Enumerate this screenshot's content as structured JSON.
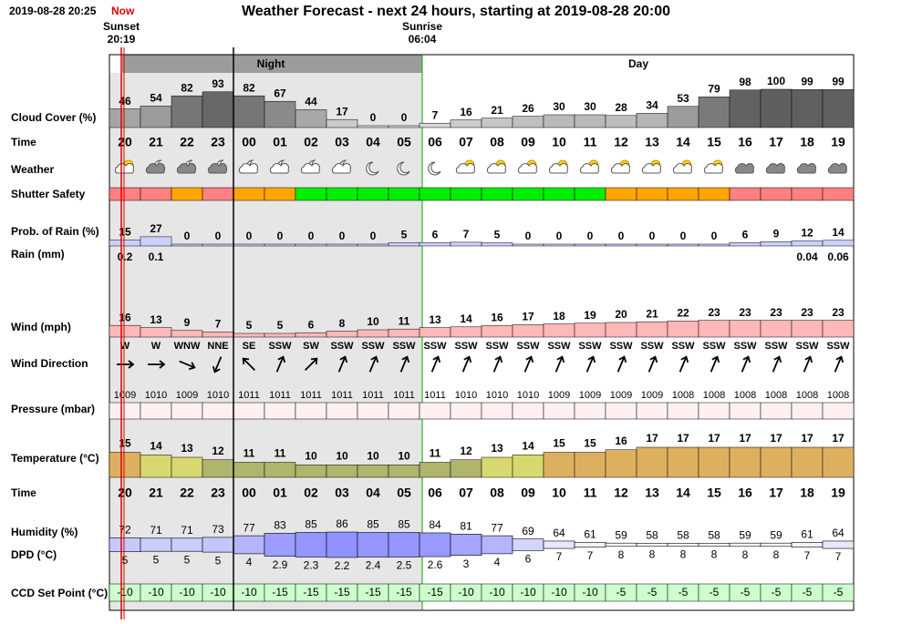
{
  "header": {
    "timestamp": "2019-08-28 20:25",
    "now": "Now",
    "title": "Weather Forecast - next 24 hours, starting at 2019-08-28 20:00",
    "sunset_label": "Sunset",
    "sunset_time": "20:19",
    "sunrise_label": "Sunrise",
    "sunrise_time": "06:04",
    "night": "Night",
    "day": "Day"
  },
  "row_labels": [
    "Cloud Cover (%)",
    "Time",
    "Weather",
    "Shutter Safety",
    "Prob. of Rain (%)",
    "Rain (mm)",
    "Wind (mph)",
    "Wind Direction",
    "Pressure (mbar)",
    "Temperature (°C)",
    "Time",
    "Humidity (%)",
    "DPD (°C)",
    "CCD Set Point (°C)"
  ],
  "hours": [
    "20",
    "21",
    "22",
    "23",
    "00",
    "01",
    "02",
    "03",
    "04",
    "05",
    "06",
    "07",
    "08",
    "09",
    "10",
    "11",
    "12",
    "13",
    "14",
    "15",
    "16",
    "17",
    "18",
    "19"
  ],
  "cloud_cover": [
    46,
    54,
    82,
    93,
    82,
    67,
    44,
    17,
    0,
    0,
    7,
    16,
    21,
    26,
    30,
    30,
    28,
    34,
    53,
    79,
    98,
    100,
    99,
    99
  ],
  "shutter_safety_colors": [
    "#ff8080",
    "#ff8080",
    "#ffa500",
    "#ff8080",
    "#ffa500",
    "#ffa500",
    "#00ee00",
    "#00ee00",
    "#00ee00",
    "#00ee00",
    "#00ee00",
    "#00ee00",
    "#00ee00",
    "#00ee00",
    "#00ee00",
    "#00ee00",
    "#ffa500",
    "#ffa500",
    "#ffa500",
    "#ffa500",
    "#ff8080",
    "#ff8080",
    "#ff8080",
    "#ff8080"
  ],
  "prob_of_rain": [
    15,
    27,
    0,
    0,
    0,
    0,
    0,
    0,
    0,
    5,
    6,
    7,
    5,
    0,
    0,
    0,
    0,
    0,
    0,
    0,
    6,
    9,
    12,
    14
  ],
  "rain_mm": [
    0.2,
    0.1,
    null,
    null,
    null,
    null,
    null,
    null,
    null,
    null,
    null,
    null,
    null,
    null,
    null,
    null,
    null,
    null,
    null,
    null,
    null,
    null,
    0.04,
    0.06
  ],
  "wind_mph": [
    16,
    13,
    9,
    7,
    5,
    5,
    6,
    8,
    10,
    11,
    13,
    14,
    16,
    17,
    18,
    19,
    20,
    21,
    22,
    23,
    23,
    23,
    23,
    23
  ],
  "wind_direction": [
    "W",
    "W",
    "WNW",
    "NNE",
    "SE",
    "SSW",
    "SW",
    "SSW",
    "SSW",
    "SSW",
    "SSW",
    "SSW",
    "SSW",
    "SSW",
    "SSW",
    "SSW",
    "SSW",
    "SSW",
    "SSW",
    "SSW",
    "SSW",
    "SSW",
    "SSW",
    "SSW"
  ],
  "pressure_mbar": [
    1009,
    1010,
    1009,
    1010,
    1011,
    1011,
    1011,
    1011,
    1011,
    1011,
    1011,
    1010,
    1010,
    1010,
    1009,
    1009,
    1009,
    1009,
    1008,
    1008,
    1008,
    1008,
    1008,
    1008
  ],
  "temperature_c": [
    15,
    14,
    13,
    12,
    11,
    11,
    10,
    10,
    10,
    10,
    11,
    12,
    13,
    14,
    15,
    15,
    16,
    17,
    17,
    17,
    17,
    17,
    17,
    17
  ],
  "humidity_pct": [
    72,
    71,
    71,
    73,
    77,
    83,
    85,
    86,
    85,
    85,
    84,
    81,
    77,
    69,
    64,
    61,
    59,
    58,
    58,
    58,
    59,
    59,
    61,
    64
  ],
  "dpd_c": [
    5,
    5,
    5,
    5,
    4,
    2.9,
    2.3,
    2.2,
    2.4,
    2.5,
    2.6,
    3,
    4,
    6,
    7,
    7,
    8,
    8,
    8,
    8,
    8,
    8,
    7,
    7
  ],
  "ccd_set_point_c": [
    -10,
    -10,
    -10,
    -10,
    -10,
    -15,
    -15,
    -15,
    -15,
    -15,
    -15,
    -10,
    -10,
    -10,
    -10,
    -10,
    -5,
    -5,
    -5,
    -5,
    -5,
    -5,
    -5,
    -5
  ]
}
